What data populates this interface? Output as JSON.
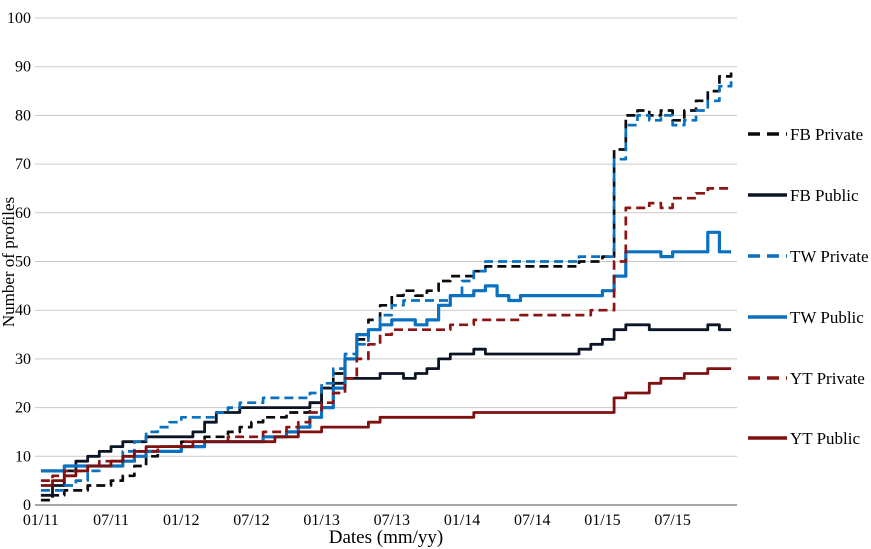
{
  "chart_data": {
    "type": "line",
    "title": "",
    "xlabel": "Dates (mm/yy)",
    "ylabel": "Number of profiles",
    "ylim": [
      0,
      100
    ],
    "grid": true,
    "legend_position": "right",
    "step_interpolation": true,
    "y_ticks": [
      0,
      10,
      20,
      30,
      40,
      50,
      60,
      70,
      80,
      90,
      100
    ],
    "x_tick_labels": [
      "01/11",
      "07/11",
      "01/12",
      "07/12",
      "01/13",
      "07/13",
      "01/14",
      "07/14",
      "01/15",
      "07/15"
    ],
    "x_tick_month_indices": [
      0,
      6,
      12,
      18,
      24,
      30,
      36,
      42,
      48,
      54
    ],
    "months": [
      "01/11",
      "02/11",
      "03/11",
      "04/11",
      "05/11",
      "06/11",
      "07/11",
      "08/11",
      "09/11",
      "10/11",
      "11/11",
      "12/11",
      "01/12",
      "02/12",
      "03/12",
      "04/12",
      "05/12",
      "06/12",
      "07/12",
      "08/12",
      "09/12",
      "10/12",
      "11/12",
      "12/12",
      "01/13",
      "02/13",
      "03/13",
      "04/13",
      "05/13",
      "06/13",
      "07/13",
      "08/13",
      "09/13",
      "10/13",
      "11/13",
      "12/13",
      "01/14",
      "02/14",
      "03/14",
      "04/14",
      "05/14",
      "06/14",
      "07/14",
      "08/14",
      "09/14",
      "10/14",
      "11/14",
      "12/14",
      "01/15",
      "02/15",
      "03/15",
      "04/15",
      "05/15",
      "06/15",
      "07/15",
      "08/15",
      "09/15",
      "10/15",
      "11/15",
      "12/15"
    ],
    "series": [
      {
        "name": "FB Private",
        "color": "#0a0a0f",
        "dash": true,
        "values": [
          1,
          2,
          3,
          3,
          4,
          4,
          5,
          6,
          8,
          10,
          11,
          12,
          13,
          13,
          14,
          14,
          15,
          16,
          17,
          18,
          18,
          19,
          19,
          21,
          24,
          27,
          30,
          34,
          38,
          41,
          43,
          44,
          43,
          44,
          46,
          47,
          47,
          48,
          49,
          49,
          49,
          49,
          49,
          49,
          49,
          49,
          50,
          50,
          51,
          73,
          80,
          81,
          80,
          81,
          79,
          81,
          83,
          85,
          88,
          89
        ]
      },
      {
        "name": "FB Public",
        "color": "#0c1526",
        "dash": false,
        "values": [
          2,
          4,
          7,
          9,
          10,
          11,
          12,
          13,
          13,
          14,
          14,
          14,
          14,
          15,
          17,
          19,
          19,
          20,
          20,
          20,
          20,
          20,
          20,
          21,
          24,
          25,
          26,
          26,
          26,
          27,
          27,
          26,
          27,
          28,
          30,
          31,
          31,
          32,
          31,
          31,
          31,
          31,
          31,
          31,
          31,
          31,
          32,
          33,
          34,
          36,
          37,
          37,
          36,
          36,
          36,
          36,
          36,
          37,
          36,
          36
        ]
      },
      {
        "name": "TW Private",
        "color": "#0a70c0",
        "dash": true,
        "values": [
          3,
          3,
          4,
          5,
          7,
          8,
          9,
          11,
          13,
          15,
          16,
          17,
          18,
          18,
          18,
          19,
          20,
          21,
          21,
          22,
          22,
          22,
          22,
          23,
          25,
          28,
          31,
          33,
          36,
          39,
          41,
          42,
          42,
          42,
          42,
          43,
          46,
          48,
          50,
          50,
          50,
          50,
          50,
          50,
          50,
          50,
          51,
          51,
          51,
          71,
          78,
          80,
          79,
          80,
          78,
          79,
          81,
          83,
          86,
          87
        ]
      },
      {
        "name": "TW Public",
        "color": "#0a70c0",
        "dash": false,
        "values": [
          7,
          7,
          8,
          8,
          8,
          8,
          8,
          9,
          10,
          11,
          11,
          11,
          12,
          12,
          13,
          13,
          13,
          13,
          13,
          14,
          14,
          15,
          16,
          18,
          20,
          24,
          30,
          35,
          36,
          37,
          38,
          38,
          37,
          38,
          41,
          43,
          43,
          44,
          45,
          43,
          42,
          43,
          43,
          43,
          43,
          43,
          43,
          43,
          44,
          47,
          52,
          52,
          52,
          51,
          52,
          52,
          52,
          56,
          52,
          52
        ]
      },
      {
        "name": "YT Private",
        "color": "#8b1515",
        "dash": true,
        "values": [
          5,
          6,
          7,
          7,
          8,
          9,
          9,
          10,
          11,
          11,
          12,
          12,
          13,
          13,
          13,
          13,
          14,
          14,
          14,
          15,
          15,
          16,
          17,
          19,
          21,
          23,
          26,
          30,
          33,
          35,
          36,
          36,
          36,
          36,
          36,
          37,
          37,
          38,
          38,
          38,
          38,
          39,
          39,
          39,
          39,
          39,
          39,
          40,
          40,
          50,
          61,
          61,
          62,
          61,
          63,
          63,
          64,
          65,
          65,
          65
        ]
      },
      {
        "name": "YT Public",
        "color": "#7f1010",
        "dash": false,
        "values": [
          4,
          5,
          6,
          7,
          8,
          8,
          9,
          10,
          11,
          12,
          12,
          12,
          12,
          13,
          13,
          13,
          13,
          13,
          13,
          13,
          14,
          14,
          15,
          15,
          16,
          16,
          16,
          16,
          17,
          18,
          18,
          18,
          18,
          18,
          18,
          18,
          18,
          19,
          19,
          19,
          19,
          19,
          19,
          19,
          19,
          19,
          19,
          19,
          19,
          22,
          23,
          23,
          25,
          26,
          26,
          27,
          27,
          28,
          28,
          28
        ]
      }
    ],
    "legend": [
      "FB Private",
      "FB Public",
      "TW Private",
      "TW Public",
      "YT Private",
      "YT Public"
    ]
  },
  "colors": {
    "background": "#ffffff",
    "gridline": "#c9c9c9",
    "axis_line": "#8a8a8a",
    "fb": "#0c1526",
    "tw": "#0a70c0",
    "yt": "#8b1515"
  }
}
